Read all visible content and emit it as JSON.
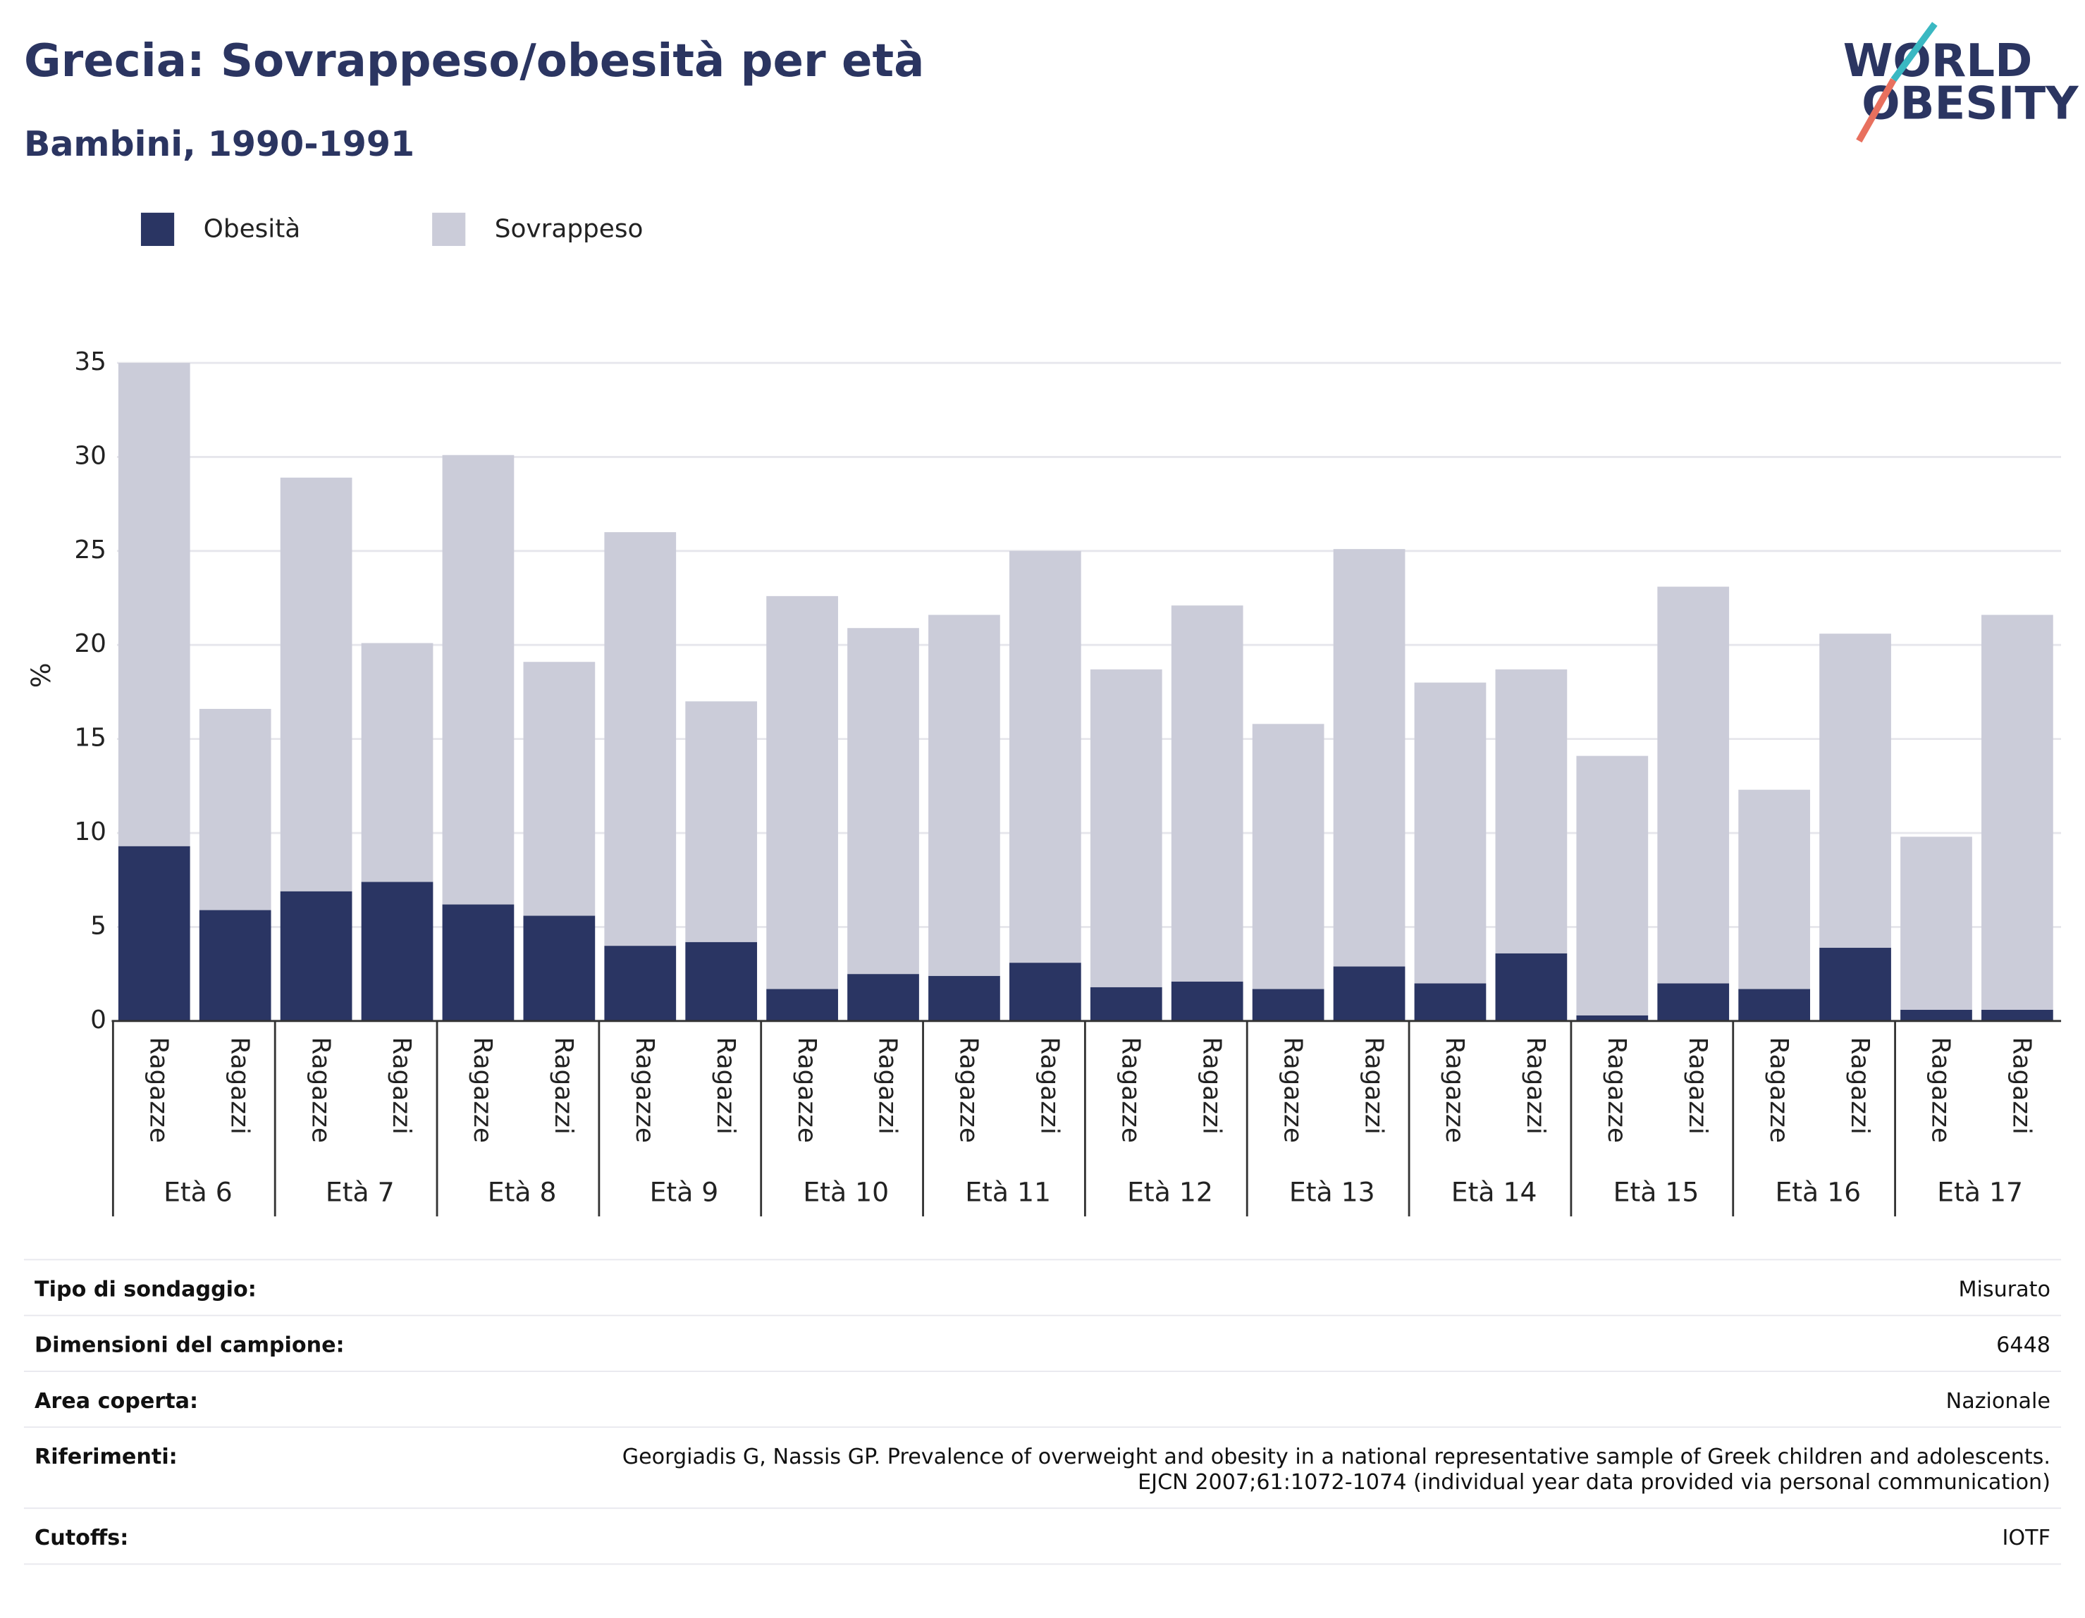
{
  "chart_data": {
    "type": "stacked_bar",
    "title": "Grecia: Sovrappeso/obesità per età",
    "subtitle": "Bambini, 1990-1991",
    "y_label": "%",
    "categories": [
      "Ragazze",
      "Ragazzi",
      "Ragazze",
      "Ragazzi",
      "Ragazze",
      "Ragazzi",
      "Ragazze",
      "Ragazzi",
      "Ragazze",
      "Ragazzi",
      "Ragazze",
      "Ragazzi",
      "Ragazze",
      "Ragazzi",
      "Ragazze",
      "Ragazzi",
      "Ragazze",
      "Ragazzi",
      "Ragazze",
      "Ragazzi",
      "Ragazze",
      "Ragazzi",
      "Ragazze",
      "Ragazzi"
    ],
    "groups": [
      "Età 6",
      "Età 7",
      "Età 8",
      "Età 9",
      "Età 10",
      "Età 11",
      "Età 12",
      "Età 13",
      "Età 14",
      "Età 15",
      "Età 16",
      "Età 17"
    ],
    "series": [
      {
        "name": "Obesità",
        "color": "#2a3563",
        "values": [
          9.3,
          5.9,
          6.9,
          7.4,
          6.2,
          5.6,
          4.0,
          4.2,
          1.7,
          2.5,
          2.4,
          3.1,
          1.8,
          2.1,
          1.7,
          2.9,
          2.0,
          3.6,
          0.3,
          2.0,
          1.7,
          3.9,
          0.6,
          0.6
        ]
      },
      {
        "name": "Sovrappeso",
        "color": "#cbccd9",
        "values": [
          25.7,
          10.7,
          22.0,
          12.7,
          23.9,
          13.5,
          22.0,
          12.8,
          20.9,
          18.4,
          19.2,
          21.9,
          16.9,
          20.0,
          14.1,
          22.2,
          16.0,
          15.1,
          13.8,
          21.1,
          10.6,
          16.7,
          9.2,
          21.0
        ]
      }
    ],
    "ylim": [
      0,
      35
    ],
    "yticks": [
      0,
      5,
      10,
      15,
      20,
      25,
      30,
      35
    ],
    "grid": true
  },
  "logo": {
    "line1": "WORLD",
    "line2": "OBESITY"
  },
  "table": {
    "rows": [
      {
        "label": "Tipo di sondaggio:",
        "value": "Misurato"
      },
      {
        "label": "Dimensioni del campione:",
        "value": "6448"
      },
      {
        "label": "Area coperta:",
        "value": "Nazionale"
      },
      {
        "label": "Riferimenti:",
        "value": [
          "Georgiadis G, Nassis GP. Prevalence of overweight and obesity in a national representative sample of Greek children and adolescents.",
          "EJCN 2007;61:1072-1074 (individual year data provided via personal communication)"
        ]
      },
      {
        "label": "Cutoffs:",
        "value": "IOTF"
      }
    ]
  }
}
